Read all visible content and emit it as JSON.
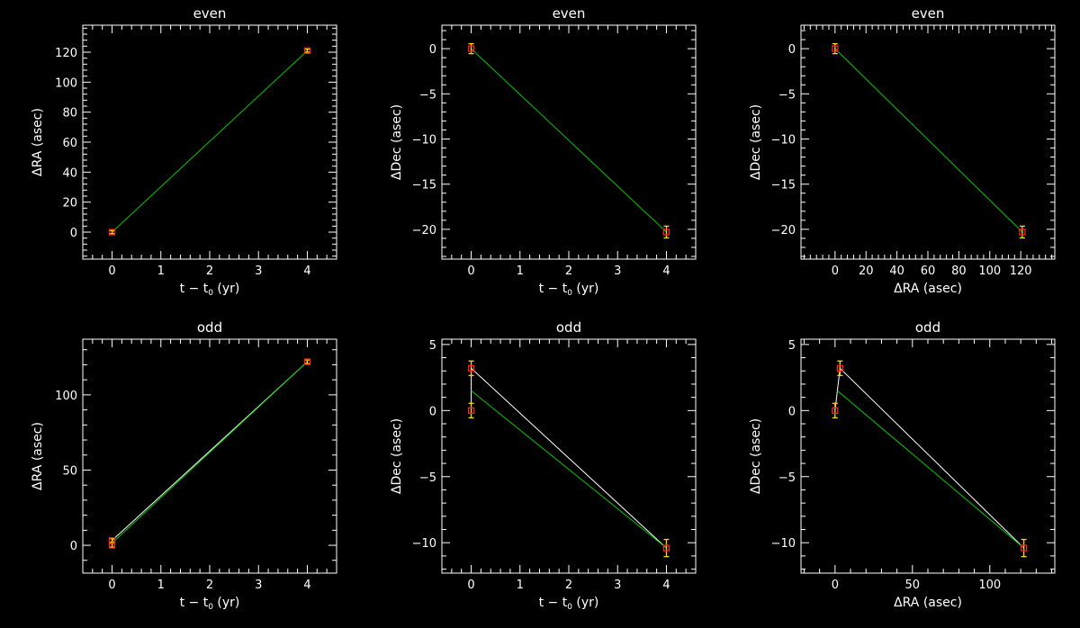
{
  "colors": {
    "background": "#000000",
    "axes": "#ffffff",
    "fit_line": "#00c800",
    "data_line": "#ffffff",
    "marker": "#ff2020",
    "error_bar": "#ffd700"
  },
  "chart_data": [
    {
      "type": "scatter",
      "title": "even",
      "xlabel": "t − t",
      "xlabel_sub": "0",
      "xlabel_suffix": " (yr)",
      "ylabel": "ΔRA (asec)",
      "xlim": [
        -0.6,
        4.6
      ],
      "ylim": [
        -18,
        138
      ],
      "xticks": [
        0,
        1,
        2,
        3,
        4
      ],
      "xtick_labels": [
        "0",
        "1",
        "2",
        "3",
        "4"
      ],
      "yticks": [
        0,
        20,
        40,
        60,
        80,
        100,
        120
      ],
      "ytick_labels": [
        "0",
        "20",
        "40",
        "60",
        "80",
        "100",
        "120"
      ],
      "points": [
        {
          "x": 0,
          "y": 0,
          "err": 1.0
        },
        {
          "x": 4,
          "y": 121,
          "err": 1.0
        }
      ],
      "fit": [
        [
          0,
          0
        ],
        [
          4,
          121
        ]
      ],
      "data_line": false
    },
    {
      "type": "scatter",
      "title": "even",
      "xlabel": "t − t",
      "xlabel_sub": "0",
      "xlabel_suffix": " (yr)",
      "ylabel": "ΔDec (asec)",
      "xlim": [
        -0.6,
        4.6
      ],
      "ylim": [
        -23.3,
        2.6
      ],
      "xticks": [
        0,
        1,
        2,
        3,
        4
      ],
      "xtick_labels": [
        "0",
        "1",
        "2",
        "3",
        "4"
      ],
      "yticks": [
        0,
        -5,
        -10,
        -15,
        -20
      ],
      "ytick_labels": [
        "0",
        "−5",
        "−10",
        "−15",
        "−20"
      ],
      "points": [
        {
          "x": 0,
          "y": 0,
          "err": 0.55
        },
        {
          "x": 4,
          "y": -20.3,
          "err": 0.65
        }
      ],
      "fit": [
        [
          0,
          0
        ],
        [
          4,
          -20.3
        ]
      ],
      "data_line": false
    },
    {
      "type": "scatter",
      "title": "even",
      "xlabel": "ΔRA (asec)",
      "xlabel_sub": "",
      "xlabel_suffix": "",
      "ylabel": "ΔDec (asec)",
      "xlim": [
        -22,
        142
      ],
      "ylim": [
        -23.3,
        2.6
      ],
      "xticks": [
        0,
        20,
        40,
        60,
        80,
        100,
        120
      ],
      "xtick_labels": [
        "0",
        "20",
        "40",
        "60",
        "80",
        "100",
        "120"
      ],
      "yticks": [
        0,
        -5,
        -10,
        -15,
        -20
      ],
      "ytick_labels": [
        "0",
        "−5",
        "−10",
        "−15",
        "−20"
      ],
      "points": [
        {
          "x": 0,
          "y": 0,
          "err": 0.55
        },
        {
          "x": 121,
          "y": -20.3,
          "err": 0.65
        }
      ],
      "fit": [
        [
          0,
          0
        ],
        [
          121,
          -20.3
        ]
      ],
      "data_line": false
    },
    {
      "type": "scatter",
      "title": "odd",
      "xlabel": "t − t",
      "xlabel_sub": "0",
      "xlabel_suffix": " (yr)",
      "ylabel": "ΔRA (asec)",
      "xlim": [
        -0.6,
        4.6
      ],
      "ylim": [
        -18.5,
        137
      ],
      "xticks": [
        0,
        1,
        2,
        3,
        4
      ],
      "xtick_labels": [
        "0",
        "1",
        "2",
        "3",
        "4"
      ],
      "yticks": [
        0,
        50,
        100
      ],
      "ytick_labels": [
        "0",
        "50",
        "100"
      ],
      "points": [
        {
          "x": 0,
          "y": 0,
          "err": 1.2
        },
        {
          "x": 0,
          "y": 3.2,
          "err": 1.2
        },
        {
          "x": 4,
          "y": 122,
          "err": 1.2
        }
      ],
      "fit": [
        [
          0,
          1.5
        ],
        [
          4,
          122
        ]
      ],
      "data_line": true
    },
    {
      "type": "scatter",
      "title": "odd",
      "xlabel": "t − t",
      "xlabel_sub": "0",
      "xlabel_suffix": " (yr)",
      "ylabel": "ΔDec (asec)",
      "xlim": [
        -0.6,
        4.6
      ],
      "ylim": [
        -12.3,
        5.4
      ],
      "xticks": [
        0,
        1,
        2,
        3,
        4
      ],
      "xtick_labels": [
        "0",
        "1",
        "2",
        "3",
        "4"
      ],
      "yticks": [
        5,
        0,
        -5,
        -10
      ],
      "ytick_labels": [
        "5",
        "0",
        "−5",
        "−10"
      ],
      "points": [
        {
          "x": 0,
          "y": 0,
          "err": 0.55
        },
        {
          "x": 0,
          "y": 3.2,
          "err": 0.55
        },
        {
          "x": 4,
          "y": -10.4,
          "err": 0.65
        }
      ],
      "fit": [
        [
          0,
          1.5
        ],
        [
          4,
          -10.4
        ]
      ],
      "data_line": true
    },
    {
      "type": "scatter",
      "title": "odd",
      "xlabel": "ΔRA (asec)",
      "xlabel_sub": "",
      "xlabel_suffix": "",
      "ylabel": "ΔDec (asec)",
      "xlim": [
        -22,
        142
      ],
      "ylim": [
        -12.3,
        5.4
      ],
      "xticks": [
        0,
        50,
        100
      ],
      "xtick_labels": [
        "0",
        "50",
        "100"
      ],
      "yticks": [
        5,
        0,
        -5,
        -10
      ],
      "ytick_labels": [
        "5",
        "0",
        "−5",
        "−10"
      ],
      "points": [
        {
          "x": 0,
          "y": 0,
          "err": 0.55
        },
        {
          "x": 3.2,
          "y": 3.2,
          "err": 0.55
        },
        {
          "x": 122,
          "y": -10.4,
          "err": 0.65
        }
      ],
      "fit": [
        [
          1.5,
          1.5
        ],
        [
          122,
          -10.4
        ]
      ],
      "data_line": true
    }
  ]
}
